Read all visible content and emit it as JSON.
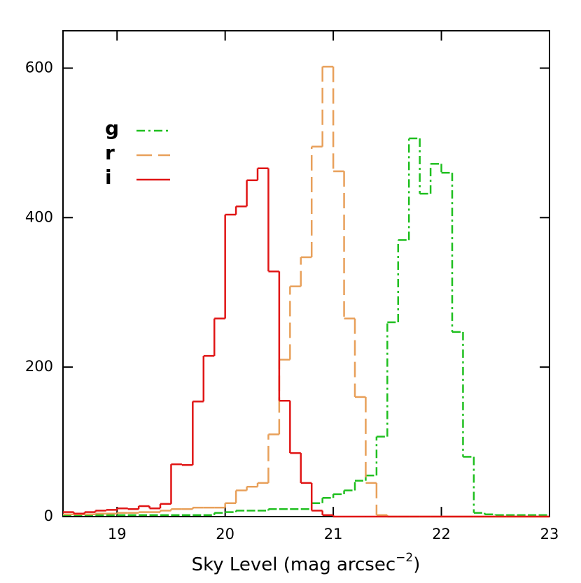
{
  "chart_data": {
    "type": "histogram",
    "xlabel": "Sky Level (mag arcsec",
    "xlabel_superscript": "−2",
    "xlabel_end": ")",
    "bins": [
      18.5,
      18.6,
      18.7,
      18.8,
      18.9,
      19.0,
      19.1,
      19.2,
      19.3,
      19.4,
      19.5,
      19.6,
      19.7,
      19.8,
      19.9,
      20.0,
      20.1,
      20.2,
      20.3,
      20.4,
      20.5,
      20.6,
      20.7,
      20.8,
      20.9,
      21.0,
      21.1,
      21.2,
      21.3,
      21.4,
      21.5,
      21.6,
      21.7,
      21.8,
      21.9,
      22.0,
      22.1,
      22.2,
      22.3,
      22.4,
      22.5,
      22.6,
      22.7,
      22.8,
      22.9,
      23.0
    ],
    "series": [
      {
        "name": "g",
        "color": "#1fbf1f",
        "dash": "dashdot",
        "values": [
          2,
          2,
          2,
          2,
          2,
          2,
          2,
          2,
          2,
          2,
          2,
          2,
          2,
          2,
          5,
          6,
          8,
          8,
          8,
          10,
          10,
          10,
          10,
          18,
          25,
          30,
          35,
          48,
          55,
          107,
          260,
          370,
          506,
          432,
          472,
          460,
          247,
          80,
          5,
          3,
          2,
          2,
          2,
          2,
          2
        ]
      },
      {
        "name": "r",
        "color": "#e8a05a",
        "dash": "dashed",
        "values": [
          3,
          3,
          3,
          4,
          4,
          5,
          5,
          6,
          6,
          8,
          10,
          10,
          12,
          12,
          12,
          18,
          35,
          40,
          45,
          110,
          210,
          308,
          347,
          495,
          602,
          462,
          265,
          160,
          45,
          2,
          0,
          0,
          0,
          0,
          0,
          0,
          0,
          0,
          0,
          0,
          0,
          0,
          0,
          0,
          0
        ]
      },
      {
        "name": "i",
        "color": "#e01515",
        "dash": "solid",
        "values": [
          6,
          4,
          6,
          8,
          9,
          11,
          10,
          14,
          11,
          17,
          70,
          69,
          154,
          215,
          265,
          404,
          415,
          450,
          466,
          328,
          155,
          85,
          45,
          8,
          2,
          0,
          0,
          0,
          0,
          0,
          0,
          0,
          0,
          0,
          0,
          0,
          0,
          0,
          0,
          0,
          0,
          0,
          0,
          0,
          0
        ]
      }
    ],
    "xlim": [
      18.5,
      23
    ],
    "xticks": [
      19,
      20,
      21,
      22,
      23
    ],
    "ylim": [
      0,
      650
    ],
    "yticks": [
      0,
      200,
      400,
      600
    ],
    "legend": "upper left"
  }
}
